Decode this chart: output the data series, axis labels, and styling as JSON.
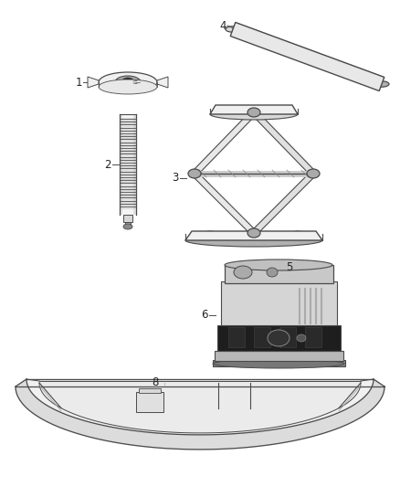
{
  "bg_color": "#ffffff",
  "line_color": "#4a4a4a",
  "fill_light": "#f0f0f0",
  "fill_mid": "#d8d8d8",
  "fill_dark": "#b0b0b0",
  "fill_black": "#1a1a1a",
  "figsize": [
    4.38,
    5.33
  ],
  "dpi": 100,
  "label_fontsize": 8.5,
  "label_color": "#222222"
}
